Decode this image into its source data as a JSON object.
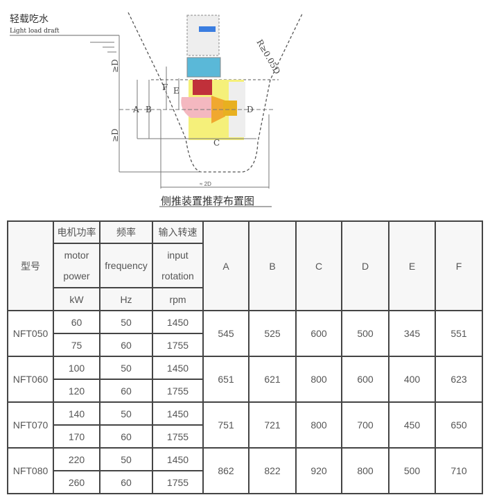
{
  "diagram": {
    "label_cn": "轻载吃水",
    "label_en": "Light load draft",
    "caption": "侧推装置推荐布置图",
    "dim_radius": "R≥0.05D",
    "dim_width": "≈ 2D",
    "dim_depth_top": "≥D",
    "dim_depth_bottom": "≥D",
    "dim_letters": [
      "A",
      "B",
      "C",
      "D",
      "E",
      "F"
    ]
  },
  "table": {
    "header": {
      "model": "型号",
      "power_cn": "电机功率",
      "power_en_1": "motor",
      "power_en_2": "power",
      "power_unit": "kW",
      "freq_cn": "频率",
      "freq_en": "frequency",
      "freq_unit": "Hz",
      "rot_cn": "输入转速",
      "rot_en_1": "input",
      "rot_en_2": "rotation",
      "rot_unit": "rpm",
      "dims": [
        "A",
        "B",
        "C",
        "D",
        "E",
        "F"
      ]
    },
    "rows": [
      {
        "model": "NFT050",
        "variants": [
          {
            "power": "60",
            "freq": "50",
            "rpm": "1450"
          },
          {
            "power": "75",
            "freq": "60",
            "rpm": "1755"
          }
        ],
        "dims": [
          "545",
          "525",
          "600",
          "500",
          "345",
          "551"
        ]
      },
      {
        "model": "NFT060",
        "variants": [
          {
            "power": "100",
            "freq": "50",
            "rpm": "1450"
          },
          {
            "power": "120",
            "freq": "60",
            "rpm": "1755"
          }
        ],
        "dims": [
          "651",
          "621",
          "800",
          "600",
          "400",
          "623"
        ]
      },
      {
        "model": "NFT070",
        "variants": [
          {
            "power": "140",
            "freq": "50",
            "rpm": "1450"
          },
          {
            "power": "170",
            "freq": "60",
            "rpm": "1755"
          }
        ],
        "dims": [
          "751",
          "721",
          "800",
          "700",
          "450",
          "650"
        ]
      },
      {
        "model": "NFT080",
        "variants": [
          {
            "power": "220",
            "freq": "50",
            "rpm": "1450"
          },
          {
            "power": "260",
            "freq": "60",
            "rpm": "1755"
          }
        ],
        "dims": [
          "862",
          "822",
          "920",
          "800",
          "500",
          "710"
        ]
      }
    ]
  }
}
